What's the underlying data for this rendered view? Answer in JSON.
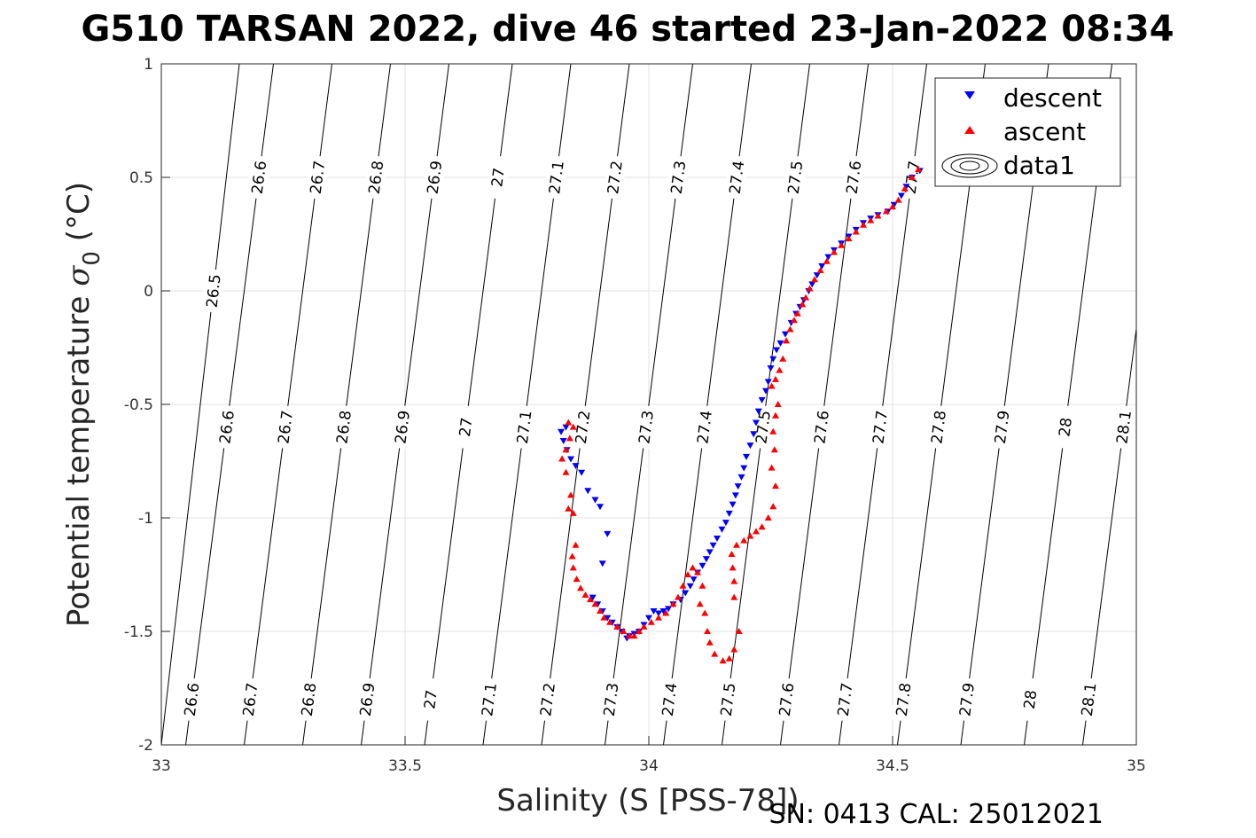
{
  "chart_data": {
    "type": "scatter",
    "title": "G510 TARSAN 2022, dive 46 started 23-Jan-2022 08:34",
    "xlabel": "Salinity (S [PSS-78])",
    "ylabel_main": "Potential temperature ",
    "ylabel_sigma": "σ",
    "ylabel_sub": "0",
    "ylabel_unit": " (°C)",
    "xlim": [
      33,
      35
    ],
    "ylim": [
      -2,
      1
    ],
    "xticks": [
      33,
      33.5,
      34,
      34.5,
      35
    ],
    "yticks": [
      -2,
      -1.5,
      -1,
      -0.5,
      0,
      0.5,
      1
    ],
    "grid": true,
    "legend_position": "top-right",
    "footer": "SN: 0413  CAL: 25012021",
    "series": [
      {
        "name": "descent",
        "marker": "triangle-down",
        "color": "#0000ff",
        "points": [
          [
            34.556,
            0.53
          ],
          [
            34.54,
            0.5
          ],
          [
            34.528,
            0.46
          ],
          [
            34.518,
            0.42
          ],
          [
            34.503,
            0.38
          ],
          [
            34.49,
            0.35
          ],
          [
            34.47,
            0.335
          ],
          [
            34.455,
            0.32
          ],
          [
            34.44,
            0.3
          ],
          [
            34.425,
            0.27
          ],
          [
            34.41,
            0.24
          ],
          [
            34.395,
            0.21
          ],
          [
            34.38,
            0.18
          ],
          [
            34.368,
            0.15
          ],
          [
            34.355,
            0.11
          ],
          [
            34.345,
            0.07
          ],
          [
            34.335,
            0.03
          ],
          [
            34.328,
            0.0
          ],
          [
            34.318,
            -0.04
          ],
          [
            34.31,
            -0.07
          ],
          [
            34.302,
            -0.1
          ],
          [
            34.292,
            -0.14
          ],
          [
            34.28,
            -0.19
          ],
          [
            34.27,
            -0.23
          ],
          [
            34.262,
            -0.26
          ],
          [
            34.255,
            -0.3
          ],
          [
            34.25,
            -0.34
          ],
          [
            34.245,
            -0.4
          ],
          [
            34.24,
            -0.44
          ],
          [
            34.232,
            -0.48
          ],
          [
            34.225,
            -0.53
          ],
          [
            34.22,
            -0.58
          ],
          [
            34.215,
            -0.63
          ],
          [
            34.208,
            -0.68
          ],
          [
            34.2,
            -0.73
          ],
          [
            34.195,
            -0.78
          ],
          [
            34.19,
            -0.82
          ],
          [
            34.183,
            -0.86
          ],
          [
            34.178,
            -0.9
          ],
          [
            34.172,
            -0.94
          ],
          [
            34.165,
            -0.98
          ],
          [
            34.158,
            -1.02
          ],
          [
            34.15,
            -1.05
          ],
          [
            34.14,
            -1.09
          ],
          [
            34.132,
            -1.12
          ],
          [
            34.125,
            -1.15
          ],
          [
            34.118,
            -1.18
          ],
          [
            34.11,
            -1.21
          ],
          [
            34.1,
            -1.24
          ],
          [
            34.092,
            -1.27
          ],
          [
            34.085,
            -1.3
          ],
          [
            34.075,
            -1.33
          ],
          [
            34.065,
            -1.36
          ],
          [
            34.05,
            -1.38
          ],
          [
            34.04,
            -1.4
          ],
          [
            34.03,
            -1.41
          ],
          [
            34.02,
            -1.42
          ],
          [
            34.01,
            -1.41
          ],
          [
            34.0,
            -1.44
          ],
          [
            33.99,
            -1.47
          ],
          [
            33.98,
            -1.5
          ],
          [
            33.97,
            -1.51
          ],
          [
            33.96,
            -1.52
          ],
          [
            33.955,
            -1.53
          ],
          [
            33.945,
            -1.5
          ],
          [
            33.935,
            -1.48
          ],
          [
            33.925,
            -1.46
          ],
          [
            33.915,
            -1.44
          ],
          [
            33.905,
            -1.41
          ],
          [
            33.895,
            -1.38
          ],
          [
            33.885,
            -1.35
          ],
          [
            33.905,
            -1.2
          ],
          [
            33.915,
            -1.07
          ],
          [
            33.9,
            -0.95
          ],
          [
            33.89,
            -0.92
          ],
          [
            33.875,
            -0.88
          ],
          [
            33.862,
            -0.8
          ],
          [
            33.85,
            -0.77
          ],
          [
            33.84,
            -0.74
          ],
          [
            33.832,
            -0.7
          ],
          [
            33.825,
            -0.66
          ],
          [
            33.82,
            -0.62
          ],
          [
            33.83,
            -0.6
          ]
        ]
      },
      {
        "name": "ascent",
        "marker": "triangle-up",
        "color": "#ff0000",
        "points": [
          [
            34.553,
            0.535
          ],
          [
            34.54,
            0.5
          ],
          [
            34.525,
            0.45
          ],
          [
            34.512,
            0.4
          ],
          [
            34.5,
            0.37
          ],
          [
            34.487,
            0.35
          ],
          [
            34.47,
            0.33
          ],
          [
            34.455,
            0.31
          ],
          [
            34.44,
            0.29
          ],
          [
            34.425,
            0.26
          ],
          [
            34.41,
            0.23
          ],
          [
            34.395,
            0.2
          ],
          [
            34.38,
            0.17
          ],
          [
            34.365,
            0.13
          ],
          [
            34.352,
            0.09
          ],
          [
            34.34,
            0.05
          ],
          [
            34.33,
            0.01
          ],
          [
            34.322,
            -0.03
          ],
          [
            34.315,
            -0.06
          ],
          [
            34.305,
            -0.1
          ],
          [
            34.298,
            -0.13
          ],
          [
            34.29,
            -0.17
          ],
          [
            34.282,
            -0.22
          ],
          [
            34.275,
            -0.3
          ],
          [
            34.268,
            -0.35
          ],
          [
            34.26,
            -0.39
          ],
          [
            34.252,
            -0.42
          ],
          [
            34.265,
            -0.5
          ],
          [
            34.26,
            -0.55
          ],
          [
            34.255,
            -0.62
          ],
          [
            34.258,
            -0.7
          ],
          [
            34.252,
            -0.78
          ],
          [
            34.26,
            -0.86
          ],
          [
            34.255,
            -0.95
          ],
          [
            34.245,
            -1.0
          ],
          [
            34.232,
            -1.04
          ],
          [
            34.22,
            -1.06
          ],
          [
            34.208,
            -1.08
          ],
          [
            34.195,
            -1.1
          ],
          [
            34.18,
            -1.12
          ],
          [
            34.17,
            -1.16
          ],
          [
            34.172,
            -1.22
          ],
          [
            34.175,
            -1.28
          ],
          [
            34.175,
            -1.35
          ],
          [
            34.185,
            -1.5
          ],
          [
            34.175,
            -1.58
          ],
          [
            34.165,
            -1.62
          ],
          [
            34.152,
            -1.63
          ],
          [
            34.135,
            -1.6
          ],
          [
            34.125,
            -1.55
          ],
          [
            34.12,
            -1.5
          ],
          [
            34.115,
            -1.42
          ],
          [
            34.105,
            -1.38
          ],
          [
            34.11,
            -1.3
          ],
          [
            34.1,
            -1.24
          ],
          [
            34.09,
            -1.22
          ],
          [
            34.08,
            -1.25
          ],
          [
            34.07,
            -1.3
          ],
          [
            34.06,
            -1.35
          ],
          [
            34.05,
            -1.38
          ],
          [
            34.035,
            -1.42
          ],
          [
            34.02,
            -1.44
          ],
          [
            34.005,
            -1.46
          ],
          [
            33.99,
            -1.48
          ],
          [
            33.98,
            -1.5
          ],
          [
            33.97,
            -1.52
          ],
          [
            33.96,
            -1.52
          ],
          [
            33.948,
            -1.5
          ],
          [
            33.935,
            -1.48
          ],
          [
            33.92,
            -1.46
          ],
          [
            33.908,
            -1.44
          ],
          [
            33.9,
            -1.41
          ],
          [
            33.89,
            -1.38
          ],
          [
            33.88,
            -1.36
          ],
          [
            33.87,
            -1.34
          ],
          [
            33.86,
            -1.31
          ],
          [
            33.852,
            -1.27
          ],
          [
            33.845,
            -1.22
          ],
          [
            33.843,
            -1.17
          ],
          [
            33.85,
            -1.12
          ],
          [
            33.845,
            -0.98
          ],
          [
            33.835,
            -0.96
          ],
          [
            33.84,
            -0.9
          ],
          [
            33.83,
            -0.8
          ],
          [
            33.822,
            -0.74
          ],
          [
            33.83,
            -0.7
          ],
          [
            33.838,
            -0.65
          ],
          [
            33.845,
            -0.6
          ],
          [
            33.835,
            -0.58
          ]
        ]
      }
    ],
    "contour_legend": "data1",
    "contours": [
      {
        "value": 26.5,
        "x_bottom": 33.0,
        "x_top": 33.16,
        "labels": [
          "26.5"
        ]
      },
      {
        "value": 26.6,
        "x_bottom": 33.05,
        "x_top": 33.23,
        "labels": [
          "26.6",
          "26.6",
          "26.6"
        ]
      },
      {
        "value": 26.7,
        "x_bottom": 33.17,
        "x_top": 33.35,
        "labels": [
          "26.7",
          "26.7",
          "26.7"
        ]
      },
      {
        "value": 26.8,
        "x_bottom": 33.29,
        "x_top": 33.47,
        "labels": [
          "26.8",
          "26.8",
          "26.8"
        ]
      },
      {
        "value": 26.9,
        "x_bottom": 33.41,
        "x_top": 33.59,
        "labels": [
          "26.9",
          "26.9",
          "26.9"
        ]
      },
      {
        "value": 27.0,
        "x_bottom": 33.54,
        "x_top": 33.72,
        "labels": [
          "27",
          "27",
          "27"
        ]
      },
      {
        "value": 27.1,
        "x_bottom": 33.66,
        "x_top": 33.84,
        "labels": [
          "27.1",
          "27.1",
          "27.1"
        ]
      },
      {
        "value": 27.2,
        "x_bottom": 33.78,
        "x_top": 33.96,
        "labels": [
          "27.2",
          "27.2",
          "27.2"
        ]
      },
      {
        "value": 27.3,
        "x_bottom": 33.91,
        "x_top": 34.09,
        "labels": [
          "27.3",
          "27.3",
          "27.3"
        ]
      },
      {
        "value": 27.4,
        "x_bottom": 34.03,
        "x_top": 34.21,
        "labels": [
          "27.4",
          "27.4",
          "27.4"
        ]
      },
      {
        "value": 27.5,
        "x_bottom": 34.15,
        "x_top": 34.33,
        "labels": [
          "27.5",
          "27.5",
          "27.5"
        ]
      },
      {
        "value": 27.6,
        "x_bottom": 34.27,
        "x_top": 34.45,
        "labels": [
          "27.6",
          "27.6",
          "27.6"
        ]
      },
      {
        "value": 27.7,
        "x_bottom": 34.39,
        "x_top": 34.57,
        "labels": [
          "27.7",
          "27.7",
          "27.7"
        ]
      },
      {
        "value": 27.8,
        "x_bottom": 34.51,
        "x_top": 34.69,
        "labels": [
          "27.8",
          "27.8"
        ]
      },
      {
        "value": 27.9,
        "x_bottom": 34.64,
        "x_top": 34.82,
        "labels": [
          "27.9",
          "27.9"
        ]
      },
      {
        "value": 28.0,
        "x_bottom": 34.77,
        "x_top": 34.95,
        "labels": [
          "28",
          "28"
        ]
      },
      {
        "value": 28.1,
        "x_bottom": 34.89,
        "x_top": 35.07,
        "labels": [
          "28.1",
          "28.1"
        ]
      }
    ]
  }
}
